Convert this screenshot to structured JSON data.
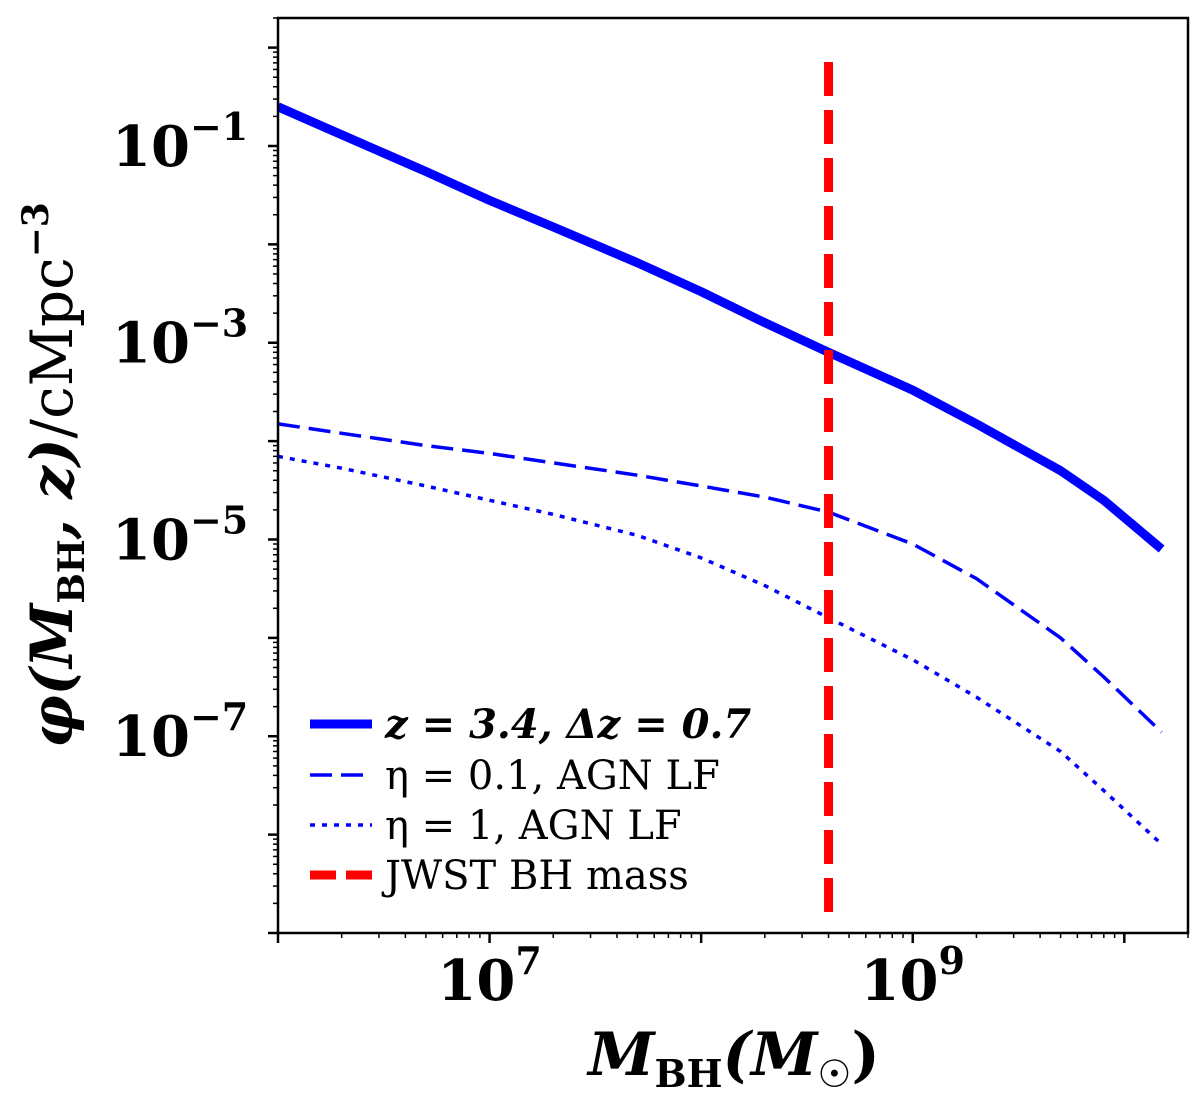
{
  "chart_data": {
    "type": "line",
    "xscale": "log",
    "yscale": "log",
    "xlim": [
      1000000,
      20000000000
    ],
    "ylim": [
      1e-09,
      2
    ],
    "grid": false,
    "legend_position": "lower-left",
    "x_tick_labels": [
      {
        "value": 10000000,
        "base": "10",
        "exp": "7"
      },
      {
        "value": 1000000000,
        "base": "10",
        "exp": "9"
      }
    ],
    "y_tick_labels": [
      {
        "value": 0.1,
        "base": "10",
        "exp": "−1"
      },
      {
        "value": 0.001,
        "base": "10",
        "exp": "−3"
      },
      {
        "value": 1e-05,
        "base": "10",
        "exp": "−5"
      },
      {
        "value": 1e-07,
        "base": "10",
        "exp": "−7"
      }
    ],
    "xlabel": {
      "main": "M",
      "sub": "BH",
      "rest": "(M",
      "sun": "☉",
      "close": ")"
    },
    "ylabel": {
      "phi": "φ(",
      "m": "M",
      "sub": "BH",
      "z": ", z)",
      "unit": "/cMpc",
      "exp": "−3"
    },
    "series": [
      {
        "name": "z = 3.4, Δz = 0.7",
        "color": "#0000ff",
        "dash": "solid",
        "width": 9,
        "x": [
          1000000,
          2000000,
          5000000,
          10000000,
          20000000,
          50000000,
          100000000,
          200000000,
          400000000,
          1000000000,
          2000000000,
          5000000000,
          8000000000,
          15000000000
        ],
        "y": [
          0.25,
          0.13,
          0.055,
          0.028,
          0.015,
          0.0065,
          0.0033,
          0.0016,
          0.0008,
          0.00033,
          0.00015,
          5e-05,
          2.5e-05,
          8e-06
        ]
      },
      {
        "name": "η = 0.1, AGN LF",
        "color": "#0000ff",
        "dash": "dashed",
        "width": 3.5,
        "x": [
          1000000,
          2000000,
          5000000,
          10000000,
          20000000,
          50000000,
          100000000,
          200000000,
          400000000,
          1000000000,
          2000000000,
          5000000000,
          8000000000,
          15000000000
        ],
        "y": [
          0.00015,
          0.00012,
          9e-05,
          7.5e-05,
          6e-05,
          4.5e-05,
          3.5e-05,
          2.7e-05,
          1.9e-05,
          9e-06,
          4e-06,
          1e-06,
          4e-07,
          1.1e-07
        ]
      },
      {
        "name": "η = 1, AGN LF",
        "color": "#0000ff",
        "dash": "dotted",
        "width": 3.5,
        "x": [
          1000000,
          2000000,
          5000000,
          10000000,
          20000000,
          50000000,
          100000000,
          200000000,
          400000000,
          1000000000,
          2000000000,
          5000000000,
          8000000000,
          15000000000
        ],
        "y": [
          7e-05,
          5.3e-05,
          3.5e-05,
          2.5e-05,
          1.8e-05,
          1.1e-05,
          6.5e-06,
          3.4e-06,
          1.6e-06,
          6e-07,
          2.5e-07,
          7e-08,
          2.8e-08,
          8e-09
        ]
      },
      {
        "name": "JWST BH mass",
        "color": "#ff0000",
        "dash": "longdash",
        "width": 9,
        "vline": 400000000,
        "y": [
          1e-09,
          1
        ]
      }
    ]
  }
}
